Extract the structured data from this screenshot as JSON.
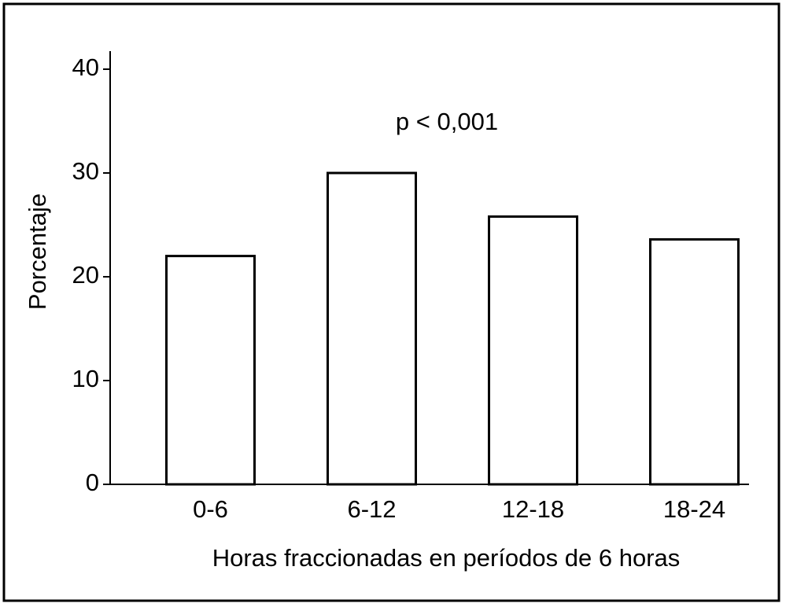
{
  "chart_data": {
    "type": "bar",
    "annotation": "p < 0,001",
    "x_label": "Horas fraccionadas en períodos de 6 horas",
    "y_label": "Porcentaje",
    "categories": [
      "0-6",
      "6-12",
      "12-18",
      "18-24"
    ],
    "values": [
      22,
      30,
      25.8,
      23.6
    ],
    "color": "#ffffff",
    "ylim": [
      0,
      40
    ],
    "yticks": [
      0,
      10,
      20,
      30,
      40
    ],
    "grid": false
  }
}
